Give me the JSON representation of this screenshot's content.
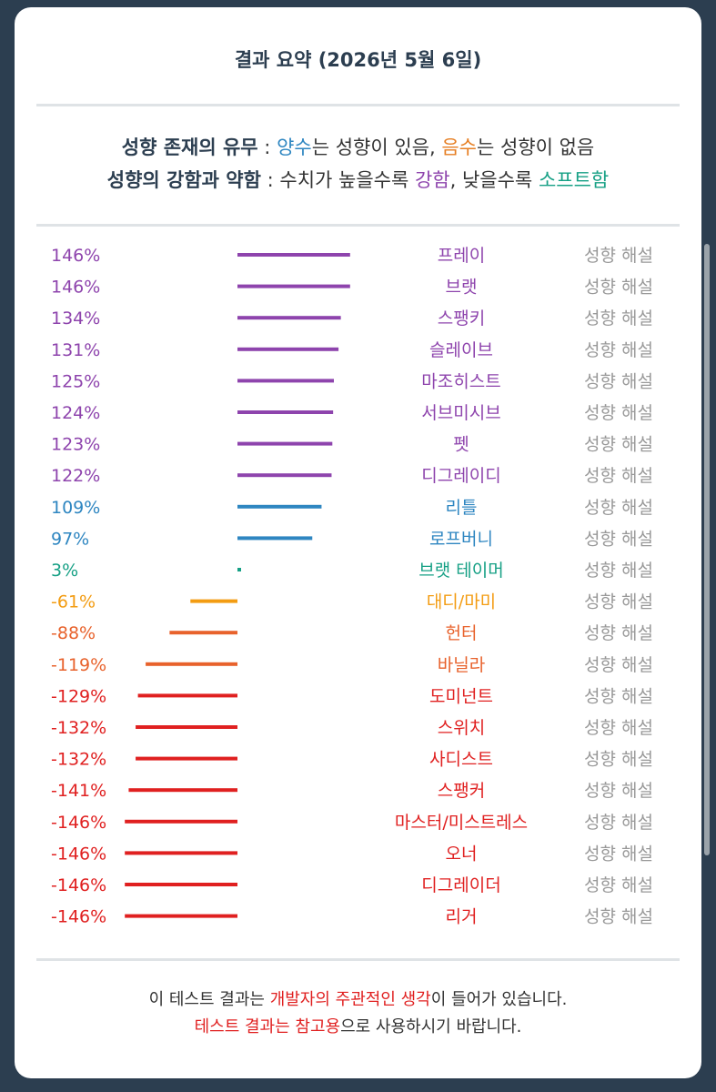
{
  "header": {
    "title": "결과 요약 (2026년 5월 6일)"
  },
  "legend": {
    "line1": {
      "term": "성향 존재의 유무",
      "sep": " : ",
      "positive": "양수",
      "positive_text": "는 성향이 있음, ",
      "negative": "음수",
      "negative_text": "는 성향이 없음"
    },
    "line2": {
      "term": "성향의 강함과 약함",
      "sep": " : ",
      "text1": "수치가 높을수록 ",
      "strong": "강함",
      "text2": ", 낮을수록 ",
      "soft": "소프트함"
    }
  },
  "chart_data": {
    "type": "bar",
    "orientation": "horizontal-diverging",
    "unit": "%",
    "link_label": "성향 해설",
    "rows": [
      {
        "name": "프레이",
        "value": 146,
        "label": "146%",
        "color": "#8e44ad"
      },
      {
        "name": "브랫",
        "value": 146,
        "label": "146%",
        "color": "#8e44ad"
      },
      {
        "name": "스팽키",
        "value": 134,
        "label": "134%",
        "color": "#8e44ad"
      },
      {
        "name": "슬레이브",
        "value": 131,
        "label": "131%",
        "color": "#8e44ad"
      },
      {
        "name": "마조히스트",
        "value": 125,
        "label": "125%",
        "color": "#8e44ad"
      },
      {
        "name": "서브미시브",
        "value": 124,
        "label": "124%",
        "color": "#8e44ad"
      },
      {
        "name": "펫",
        "value": 123,
        "label": "123%",
        "color": "#8e44ad"
      },
      {
        "name": "디그레이디",
        "value": 122,
        "label": "122%",
        "color": "#8e44ad"
      },
      {
        "name": "리틀",
        "value": 109,
        "label": "109%",
        "color": "#2e86c1"
      },
      {
        "name": "로프버니",
        "value": 97,
        "label": "97%",
        "color": "#2e86c1"
      },
      {
        "name": "브랫 테이머",
        "value": 3,
        "label": "3%",
        "color": "#16a085"
      },
      {
        "name": "대디/마미",
        "value": -61,
        "label": "-61%",
        "color": "#f39c12"
      },
      {
        "name": "헌터",
        "value": -88,
        "label": "-88%",
        "color": "#e8622c"
      },
      {
        "name": "바닐라",
        "value": -119,
        "label": "-119%",
        "color": "#e8622c"
      },
      {
        "name": "도미넌트",
        "value": -129,
        "label": "-129%",
        "color": "#e02020"
      },
      {
        "name": "스위치",
        "value": -132,
        "label": "-132%",
        "color": "#e02020"
      },
      {
        "name": "사디스트",
        "value": -132,
        "label": "-132%",
        "color": "#e02020"
      },
      {
        "name": "스팽커",
        "value": -141,
        "label": "-141%",
        "color": "#e02020"
      },
      {
        "name": "마스터/미스트레스",
        "value": -146,
        "label": "-146%",
        "color": "#e02020"
      },
      {
        "name": "오너",
        "value": -146,
        "label": "-146%",
        "color": "#e02020"
      },
      {
        "name": "디그레이더",
        "value": -146,
        "label": "-146%",
        "color": "#e02020"
      },
      {
        "name": "리거",
        "value": -146,
        "label": "-146%",
        "color": "#e02020"
      }
    ]
  },
  "footer": {
    "line1_a": "이 테스트 결과는 ",
    "line1_highlight": "개발자의 주관적인 생각",
    "line1_b": "이 들어가 있습니다.",
    "line2_highlight": "테스트 결과는 참고용",
    "line2_b": "으로 사용하시기 바랍니다."
  },
  "colors": {
    "positive": "#2e86c1",
    "negative": "#e67e22",
    "strong": "#8e44ad",
    "soft": "#16a085",
    "warning": "#e02020",
    "link": "#999999"
  }
}
